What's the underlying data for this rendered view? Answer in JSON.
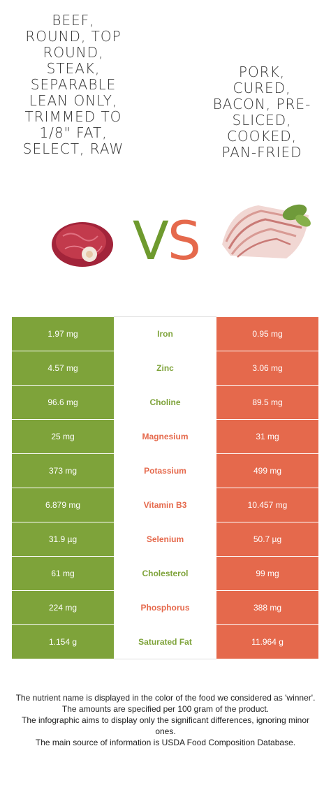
{
  "left_food": {
    "title_lines": [
      "BEEF,",
      "ROUND, TOP",
      "ROUND,",
      "STEAK,",
      "SEPARABLE",
      "LEAN ONLY,",
      "TRIMMED TO",
      "1/8\" FAT,",
      "SELECT, RAW"
    ],
    "color": "#7ea33a",
    "image_icon": "beef-steak-image"
  },
  "right_food": {
    "title_lines": [
      "PORK,",
      "CURED,",
      "BACON, PRE-",
      "SLICED,",
      "COOKED,",
      "PAN-FRIED"
    ],
    "color": "#e5694c",
    "image_icon": "bacon-image"
  },
  "vs": {
    "v": "V",
    "s": "S"
  },
  "rows": [
    {
      "left": "1.97 mg",
      "name": "Iron",
      "right": "0.95 mg",
      "winner": "left"
    },
    {
      "left": "4.57 mg",
      "name": "Zinc",
      "right": "3.06 mg",
      "winner": "left"
    },
    {
      "left": "96.6 mg",
      "name": "Choline",
      "right": "89.5 mg",
      "winner": "left"
    },
    {
      "left": "25 mg",
      "name": "Magnesium",
      "right": "31 mg",
      "winner": "right"
    },
    {
      "left": "373 mg",
      "name": "Potassium",
      "right": "499 mg",
      "winner": "right"
    },
    {
      "left": "6.879 mg",
      "name": "Vitamin B3",
      "right": "10.457 mg",
      "winner": "right"
    },
    {
      "left": "31.9 µg",
      "name": "Selenium",
      "right": "50.7 µg",
      "winner": "right"
    },
    {
      "left": "61 mg",
      "name": "Cholesterol",
      "right": "99 mg",
      "winner": "left"
    },
    {
      "left": "224 mg",
      "name": "Phosphorus",
      "right": "388 mg",
      "winner": "right"
    },
    {
      "left": "1.154 g",
      "name": "Saturated Fat",
      "right": "11.964 g",
      "winner": "left"
    }
  ],
  "footer": {
    "line1": "The nutrient name is displayed in the color of the food we considered as 'winner'.",
    "line2": "The amounts are specified per 100 gram of the product.",
    "line3": "The infographic aims to display only the significant differences, ignoring minor ones.",
    "line4": "The main source of information is USDA Food Composition Database."
  }
}
